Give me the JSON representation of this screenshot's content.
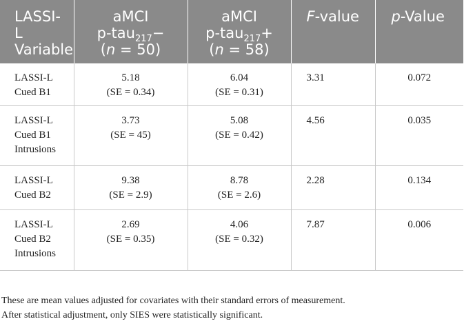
{
  "table": {
    "headers": [
      {
        "lines": [
          "LASSI-",
          "L",
          "Variable"
        ]
      },
      {
        "lines": [
          "aMCI"
        ],
        "tau_prefix": "p-tau",
        "tau_sub": "217",
        "tau_suffix": "−",
        "n_prefix": "(",
        "n_var": "n",
        "n_suffix": " = 50)"
      },
      {
        "lines": [
          "aMCI"
        ],
        "tau_prefix": "p-tau",
        "tau_sub": "217",
        "tau_suffix": "+",
        "n_prefix": "(",
        "n_var": "n",
        "n_suffix": " = 58)"
      },
      {
        "italic": "F",
        "rest": "-value"
      },
      {
        "italic": "p",
        "rest": "-Value"
      }
    ],
    "rows": [
      {
        "variable": [
          "LASSI-L",
          "Cued B1"
        ],
        "neg": [
          "5.18",
          "(SE = 0.34)"
        ],
        "pos": [
          "6.04",
          "(SE = 0.31)"
        ],
        "f": "3.31",
        "p": "0.072"
      },
      {
        "variable": [
          "LASSI-L",
          "Cued B1",
          "Intrusions"
        ],
        "neg": [
          "3.73",
          "(SE = 45)"
        ],
        "pos": [
          "5.08",
          "(SE = 0.42)"
        ],
        "f": "4.56",
        "p": "0.035"
      },
      {
        "variable": [
          "LASSI-L",
          "Cued B2"
        ],
        "neg": [
          "9.38",
          "(SE = 2.9)"
        ],
        "pos": [
          "8.78",
          "(SE = 2.6)"
        ],
        "f": "2.28",
        "p": "0.134"
      },
      {
        "variable": [
          "LASSI-L",
          "Cued B2",
          "Intrusions"
        ],
        "neg": [
          "2.69",
          "(SE = 0.35)"
        ],
        "pos": [
          "4.06",
          "(SE = 0.32)"
        ],
        "f": "7.87",
        "p": "0.006"
      }
    ]
  },
  "footnote": {
    "line1": "These are mean values adjusted for covariates with their standard errors of measurement.",
    "line2": "After statistical adjustment, only SIES were statistically significant."
  }
}
